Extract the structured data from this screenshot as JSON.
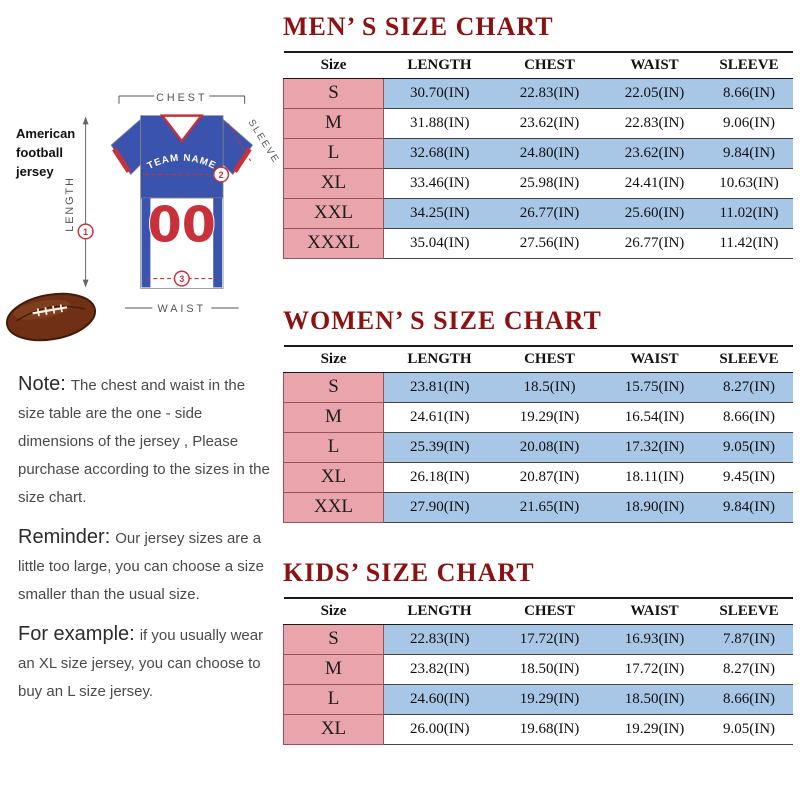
{
  "colors": {
    "title_red": "#8c1110",
    "size_cell_pink": "#e9a4ac",
    "size_cell_border": "#95525b",
    "row_blue": "#a8c7e7",
    "jersey_blue": "#3a53ad",
    "jersey_red": "#c8303a",
    "football_brown": "#6f3015"
  },
  "left_panel": {
    "jersey_label": "American football jersey",
    "jersey": {
      "team_name": "TEAM NAME",
      "number": "00",
      "chest_label": "CHEST",
      "sleeve_label": "SLEEVE",
      "length_label": "LENGTH",
      "waist_label": "WAIST",
      "markers": [
        "1",
        "2",
        "3"
      ]
    },
    "note": {
      "label": "Note:",
      "text": "The chest and waist in the size table are the one - side dimensions of the jersey , Please purchase according to the sizes in the size chart."
    },
    "reminder": {
      "label": "Reminder:",
      "text": "Our jersey sizes are a little too large, you can choose a size smaller than the usual size."
    },
    "example": {
      "label": "For example:",
      "text": "if you usually wear an XL size jersey, you can choose to buy an L size jersey."
    }
  },
  "charts": [
    {
      "title": "MEN’ S SIZE CHART",
      "columns": [
        "Size",
        "LENGTH",
        "CHEST",
        "WAIST",
        "SLEEVE"
      ],
      "rows": [
        {
          "size": "S",
          "values": [
            "30.70(IN)",
            "22.83(IN)",
            "22.05(IN)",
            "8.66(IN)"
          ]
        },
        {
          "size": "M",
          "values": [
            "31.88(IN)",
            "23.62(IN)",
            "22.83(IN)",
            "9.06(IN)"
          ]
        },
        {
          "size": "L",
          "values": [
            "32.68(IN)",
            "24.80(IN)",
            "23.62(IN)",
            "9.84(IN)"
          ]
        },
        {
          "size": "XL",
          "values": [
            "33.46(IN)",
            "25.98(IN)",
            "24.41(IN)",
            "10.63(IN)"
          ]
        },
        {
          "size": "XXL",
          "values": [
            "34.25(IN)",
            "26.77(IN)",
            "25.60(IN)",
            "11.02(IN)"
          ]
        },
        {
          "size": "XXXL",
          "values": [
            "35.04(IN)",
            "27.56(IN)",
            "26.77(IN)",
            "11.42(IN)"
          ]
        }
      ]
    },
    {
      "title": "WOMEN’ S SIZE CHART",
      "columns": [
        "Size",
        "LENGTH",
        "CHEST",
        "WAIST",
        "SLEEVE"
      ],
      "rows": [
        {
          "size": "S",
          "values": [
            "23.81(IN)",
            "18.5(IN)",
            "15.75(IN)",
            "8.27(IN)"
          ]
        },
        {
          "size": "M",
          "values": [
            "24.61(IN)",
            "19.29(IN)",
            "16.54(IN)",
            "8.66(IN)"
          ]
        },
        {
          "size": "L",
          "values": [
            "25.39(IN)",
            "20.08(IN)",
            "17.32(IN)",
            "9.05(IN)"
          ]
        },
        {
          "size": "XL",
          "values": [
            "26.18(IN)",
            "20.87(IN)",
            "18.11(IN)",
            "9.45(IN)"
          ]
        },
        {
          "size": "XXL",
          "values": [
            "27.90(IN)",
            "21.65(IN)",
            "18.90(IN)",
            "9.84(IN)"
          ]
        }
      ]
    },
    {
      "title": "KIDS’ SIZE CHART",
      "columns": [
        "Size",
        "LENGTH",
        "CHEST",
        "WAIST",
        "SLEEVE"
      ],
      "rows": [
        {
          "size": "S",
          "values": [
            "22.83(IN)",
            "17.72(IN)",
            "16.93(IN)",
            "7.87(IN)"
          ]
        },
        {
          "size": "M",
          "values": [
            "23.82(IN)",
            "18.50(IN)",
            "17.72(IN)",
            "8.27(IN)"
          ]
        },
        {
          "size": "L",
          "values": [
            "24.60(IN)",
            "19.29(IN)",
            "18.50(IN)",
            "8.66(IN)"
          ]
        },
        {
          "size": "XL",
          "values": [
            "26.00(IN)",
            "19.68(IN)",
            "19.29(IN)",
            "9.05(IN)"
          ]
        }
      ]
    }
  ]
}
